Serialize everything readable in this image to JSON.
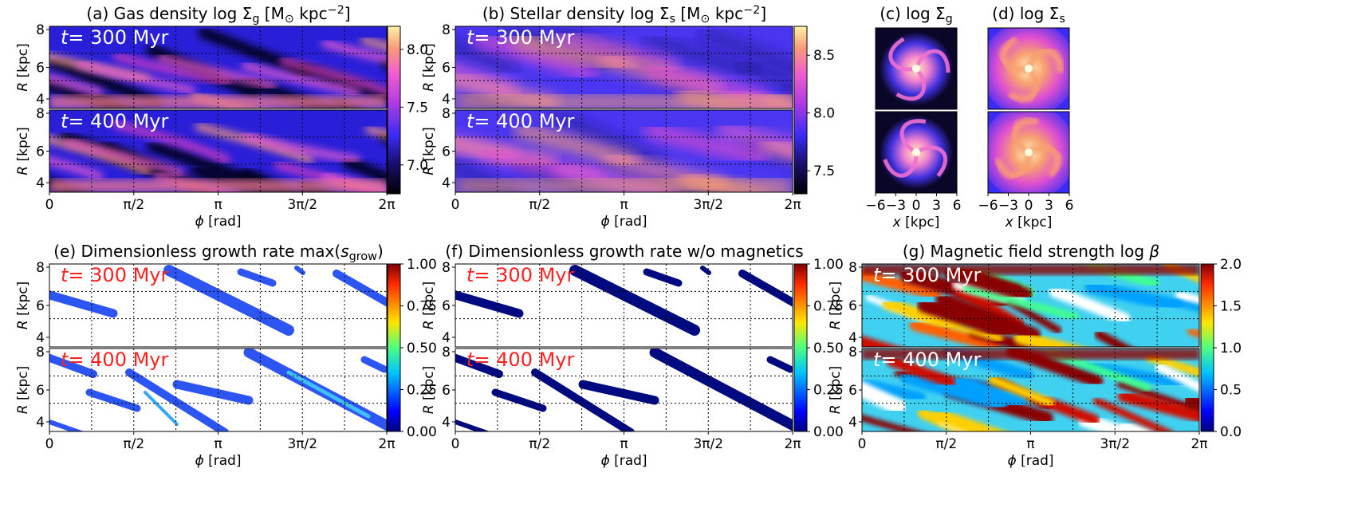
{
  "panels": {
    "a": {
      "title": "(a) Gas density log Σ",
      "sub": "g",
      "units": " [M",
      "sun": "⊙",
      "unit2": " kpc",
      "exp": "−2",
      "close": "]"
    },
    "b": {
      "title": "(b) Stellar density log Σ",
      "sub": "s",
      "units": " [M",
      "sun": "⊙",
      "unit2": " kpc",
      "exp": "−2",
      "close": "]"
    },
    "c": {
      "title": "(c) log Σ",
      "sub": "g"
    },
    "d": {
      "title": "(d) log Σ",
      "sub": "s"
    },
    "e": {
      "title": "(e) Dimensionless growth rate max(",
      "italic": "s",
      "sub": "grow",
      "close": ")"
    },
    "f": {
      "title": "(f) Dimensionless growth rate w/o magnetics"
    },
    "g": {
      "title": "(g) Magnetic field strength log ",
      "italic": "β"
    }
  },
  "times": [
    "= 300 Myr",
    "= 400 Myr"
  ],
  "time_symbol": "t",
  "axes": {
    "phi_label_sym": "ϕ",
    "phi_label_unit": " [rad]",
    "phi_ticks": [
      "0",
      "π/2",
      "π",
      "3π/2",
      "2π"
    ],
    "r_label_sym": "R",
    "r_label_unit": " [kpc]",
    "r_ticks": [
      "8",
      "6",
      "4"
    ],
    "x_label_sym": "x",
    "x_label_unit": " [kpc]",
    "x_ticks": [
      "−6",
      "−3",
      "0",
      "3",
      "6"
    ]
  },
  "colorbars": {
    "a": [
      "8.0",
      "7.5",
      "7.0"
    ],
    "b": [
      "8.5",
      "8.0",
      "7.5"
    ],
    "e": [
      "1.00",
      "0.75",
      "0.50",
      "0.25",
      "0.00"
    ],
    "f": [
      "1.00",
      "0.75",
      "0.50",
      "0.25",
      "0.00"
    ],
    "g": [
      "2.0",
      "1.5",
      "1.0",
      "0.5",
      "0.0"
    ]
  },
  "chart_data": [
    {
      "type": "heatmap",
      "title": "(a) Gas density log Σg [M⊙ kpc−2]",
      "xlabel": "ϕ [rad]",
      "ylabel": "R [kpc]",
      "xlim": [
        0,
        6.283
      ],
      "ylim": [
        3,
        8
      ],
      "colorbar_range": [
        6.75,
        8.2
      ],
      "colormap": "magma-like",
      "snapshots_myr": [
        300,
        400
      ]
    },
    {
      "type": "heatmap",
      "title": "(b) Stellar density log Σs [M⊙ kpc−2]",
      "xlabel": "ϕ [rad]",
      "ylabel": "R [kpc]",
      "xlim": [
        0,
        6.283
      ],
      "ylim": [
        3,
        8
      ],
      "colorbar_range": [
        7.3,
        8.75
      ],
      "colormap": "magma-like",
      "snapshots_myr": [
        300,
        400
      ]
    },
    {
      "type": "heatmap",
      "title": "(c) log Σg",
      "xlabel": "x [kpc]",
      "xlim": [
        -6,
        6
      ],
      "colormap": "magma-like"
    },
    {
      "type": "heatmap",
      "title": "(d) log Σs",
      "xlabel": "x [kpc]",
      "xlim": [
        -6,
        6
      ],
      "colormap": "magma-like"
    },
    {
      "type": "heatmap",
      "title": "(e) Dimensionless growth rate max(sgrow)",
      "xlabel": "ϕ [rad]",
      "ylabel": "R [kpc]",
      "xlim": [
        0,
        6.283
      ],
      "ylim": [
        3,
        8
      ],
      "colorbar_range": [
        0,
        1
      ],
      "colormap": "jet",
      "snapshots_myr": [
        300,
        400
      ]
    },
    {
      "type": "heatmap",
      "title": "(f) Dimensionless growth rate w/o magnetics",
      "xlabel": "ϕ [rad]",
      "ylabel": "R [kpc]",
      "xlim": [
        0,
        6.283
      ],
      "ylim": [
        3,
        8
      ],
      "colorbar_range": [
        0,
        1
      ],
      "colormap": "jet",
      "snapshots_myr": [
        300,
        400
      ]
    },
    {
      "type": "heatmap",
      "title": "(g) Magnetic field strength log β",
      "xlabel": "ϕ [rad]",
      "ylabel": "R [kpc]",
      "xlim": [
        0,
        6.283
      ],
      "ylim": [
        3,
        8
      ],
      "colorbar_range": [
        0,
        2
      ],
      "colormap": "jet",
      "snapshots_myr": [
        300,
        400
      ]
    }
  ],
  "colors": {
    "magma_dark": "#000004",
    "magma_blue": "#3a2cf5",
    "magma_pink": "#f05fd0",
    "magma_yellow": "#fcea80",
    "growth_color": "#2c55f2",
    "nomag_color": "#000a80",
    "time_white": "#ffffff",
    "time_red": "#ff2020"
  }
}
